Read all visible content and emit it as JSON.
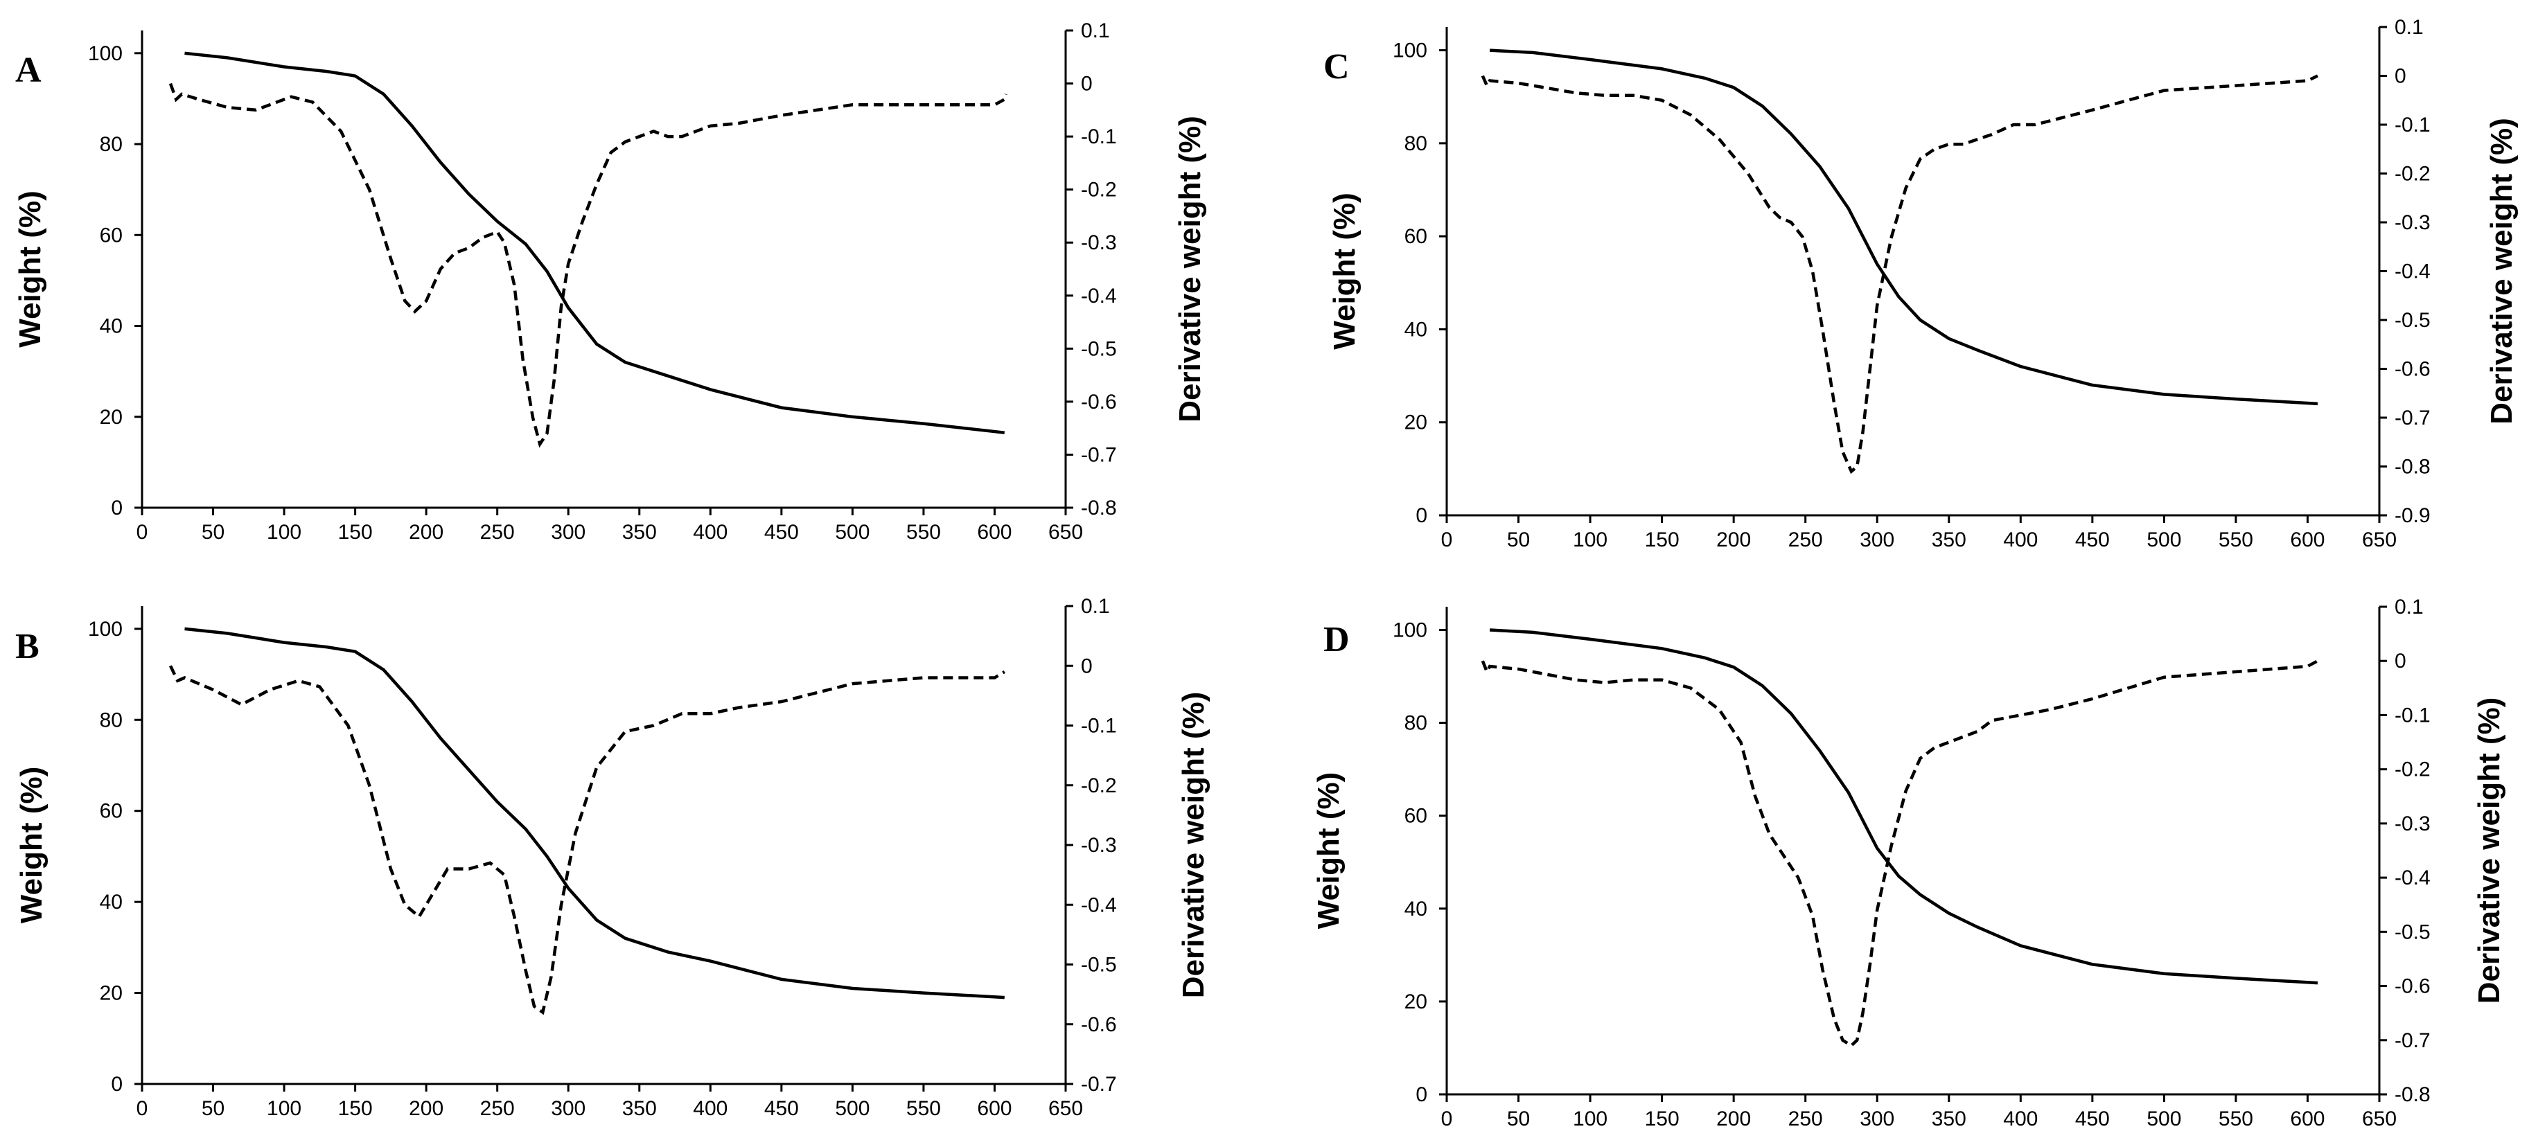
{
  "chart_data": [
    {
      "type": "line",
      "panel_label": "A",
      "ylabel": "Weight (%)",
      "y2label": "Derivative weight (%)",
      "xlim": [
        0,
        650
      ],
      "ylim": [
        0,
        105
      ],
      "y2lim": [
        -0.8,
        0.1
      ],
      "xticks": [
        "0",
        "50",
        "100",
        "150",
        "200",
        "250",
        "300",
        "350",
        "400",
        "450",
        "500",
        "550",
        "600",
        "650"
      ],
      "yticks": [
        "0",
        "20",
        "40",
        "60",
        "80",
        "100"
      ],
      "y2ticks": [
        "0.1",
        "0",
        "-0.1",
        "-0.2",
        "-0.3",
        "-0.4",
        "-0.5",
        "-0.6",
        "-0.7",
        "-0.8"
      ],
      "series": [
        {
          "name": "Weight (%)",
          "axis": "left",
          "style": "solid",
          "x": [
            30,
            60,
            100,
            130,
            150,
            170,
            190,
            210,
            230,
            250,
            270,
            285,
            300,
            320,
            340,
            370,
            400,
            450,
            500,
            550,
            607
          ],
          "y": [
            100,
            99,
            97,
            96,
            95,
            91,
            84,
            76,
            69,
            63,
            58,
            52,
            44,
            36,
            32,
            29,
            26,
            22,
            20,
            18.5,
            16.5
          ]
        },
        {
          "name": "Derivative weight (%)",
          "axis": "right",
          "style": "dashed",
          "x": [
            20,
            24,
            28,
            40,
            60,
            80,
            95,
            105,
            120,
            140,
            160,
            175,
            185,
            192,
            200,
            210,
            220,
            230,
            240,
            250,
            255,
            262,
            268,
            275,
            280,
            285,
            290,
            295,
            300,
            310,
            320,
            330,
            340,
            350,
            360,
            370,
            380,
            400,
            420,
            450,
            500,
            550,
            600,
            607,
            608
          ],
          "y": [
            0,
            -0.03,
            -0.02,
            -0.03,
            -0.045,
            -0.05,
            -0.035,
            -0.025,
            -0.035,
            -0.09,
            -0.2,
            -0.33,
            -0.41,
            -0.43,
            -0.41,
            -0.35,
            -0.32,
            -0.31,
            -0.29,
            -0.28,
            -0.3,
            -0.38,
            -0.52,
            -0.63,
            -0.68,
            -0.66,
            -0.56,
            -0.42,
            -0.34,
            -0.26,
            -0.19,
            -0.13,
            -0.11,
            -0.1,
            -0.09,
            -0.1,
            -0.1,
            -0.08,
            -0.075,
            -0.06,
            -0.04,
            -0.04,
            -0.04,
            -0.03,
            -0.02
          ]
        }
      ]
    },
    {
      "type": "line",
      "panel_label": "B",
      "ylabel": "Weight (%)",
      "y2label": "Derivative weight (%)",
      "xlim": [
        0,
        650
      ],
      "ylim": [
        0,
        105
      ],
      "y2lim": [
        -0.7,
        0.1
      ],
      "xticks": [
        "0",
        "50",
        "100",
        "150",
        "200",
        "250",
        "300",
        "350",
        "400",
        "450",
        "500",
        "550",
        "600",
        "650"
      ],
      "yticks": [
        "0",
        "20",
        "40",
        "60",
        "80",
        "100"
      ],
      "y2ticks": [
        "0.1",
        "0",
        "-0.1",
        "-0.2",
        "-0.3",
        "-0.4",
        "-0.5",
        "-0.6",
        "-0.7"
      ],
      "series": [
        {
          "name": "Weight (%)",
          "axis": "left",
          "style": "solid",
          "x": [
            30,
            60,
            100,
            130,
            150,
            170,
            190,
            210,
            230,
            250,
            270,
            285,
            300,
            320,
            340,
            370,
            400,
            450,
            500,
            550,
            607
          ],
          "y": [
            100,
            99,
            97,
            96,
            95,
            91,
            84,
            76,
            69,
            62,
            56,
            50,
            43,
            36,
            32,
            29,
            27,
            23,
            21,
            20,
            19
          ]
        },
        {
          "name": "Derivative weight (%)",
          "axis": "right",
          "style": "dashed",
          "x": [
            20,
            25,
            30,
            50,
            70,
            90,
            110,
            125,
            145,
            160,
            175,
            185,
            195,
            205,
            215,
            230,
            245,
            255,
            262,
            270,
            276,
            282,
            288,
            295,
            305,
            320,
            340,
            360,
            380,
            400,
            420,
            450,
            500,
            550,
            600,
            607
          ],
          "y": [
            0,
            -0.025,
            -0.02,
            -0.04,
            -0.065,
            -0.04,
            -0.025,
            -0.035,
            -0.1,
            -0.2,
            -0.34,
            -0.4,
            -0.42,
            -0.38,
            -0.34,
            -0.34,
            -0.33,
            -0.35,
            -0.42,
            -0.51,
            -0.57,
            -0.58,
            -0.52,
            -0.4,
            -0.28,
            -0.17,
            -0.11,
            -0.1,
            -0.08,
            -0.08,
            -0.07,
            -0.06,
            -0.03,
            -0.02,
            -0.02,
            -0.01
          ]
        }
      ]
    },
    {
      "type": "line",
      "panel_label": "C",
      "ylabel": "Weight (%)",
      "y2label": "Derivative weight (%)",
      "xlim": [
        0,
        650
      ],
      "ylim": [
        0,
        105
      ],
      "y2lim": [
        -0.9,
        0.1
      ],
      "xticks": [
        "0",
        "50",
        "100",
        "150",
        "200",
        "250",
        "300",
        "350",
        "400",
        "450",
        "500",
        "550",
        "600",
        "650"
      ],
      "yticks": [
        "0",
        "20",
        "40",
        "60",
        "80",
        "100"
      ],
      "y2ticks": [
        "0.1",
        "0",
        "-0.1",
        "-0.2",
        "-0.3",
        "-0.4",
        "-0.5",
        "-0.6",
        "-0.7",
        "-0.8",
        "-0.9"
      ],
      "series": [
        {
          "name": "Weight (%)",
          "axis": "left",
          "style": "solid",
          "x": [
            30,
            60,
            100,
            150,
            180,
            200,
            220,
            240,
            260,
            280,
            290,
            300,
            315,
            330,
            350,
            370,
            400,
            450,
            500,
            550,
            607
          ],
          "y": [
            100,
            99.5,
            98,
            96,
            94,
            92,
            88,
            82,
            75,
            66,
            60,
            54,
            47,
            42,
            38,
            35.5,
            32,
            28,
            26,
            25,
            24
          ]
        },
        {
          "name": "Derivative weight (%)",
          "axis": "right",
          "style": "dashed",
          "x": [
            25,
            28,
            30,
            50,
            70,
            90,
            110,
            130,
            150,
            170,
            190,
            210,
            225,
            232,
            240,
            248,
            255,
            262,
            270,
            276,
            282,
            286,
            290,
            295,
            300,
            310,
            320,
            330,
            340,
            350,
            360,
            370,
            380,
            395,
            410,
            450,
            500,
            550,
            600,
            607
          ],
          "y": [
            0,
            -0.02,
            -0.01,
            -0.015,
            -0.025,
            -0.035,
            -0.04,
            -0.04,
            -0.05,
            -0.08,
            -0.13,
            -0.2,
            -0.27,
            -0.29,
            -0.3,
            -0.33,
            -0.4,
            -0.52,
            -0.67,
            -0.77,
            -0.81,
            -0.8,
            -0.73,
            -0.6,
            -0.47,
            -0.33,
            -0.23,
            -0.17,
            -0.15,
            -0.14,
            -0.14,
            -0.13,
            -0.12,
            -0.1,
            -0.1,
            -0.07,
            -0.03,
            -0.02,
            -0.01,
            0
          ]
        }
      ]
    },
    {
      "type": "line",
      "panel_label": "D",
      "ylabel": "Weight (%)",
      "y2label": "Derivative weight (%)",
      "xlim": [
        0,
        650
      ],
      "ylim": [
        0,
        105
      ],
      "y2lim": [
        -0.8,
        0.1
      ],
      "xticks": [
        "0",
        "50",
        "100",
        "150",
        "200",
        "250",
        "300",
        "350",
        "400",
        "450",
        "500",
        "550",
        "600",
        "650"
      ],
      "yticks": [
        "0",
        "20",
        "40",
        "60",
        "80",
        "100"
      ],
      "y2ticks": [
        "0.1",
        "0",
        "-0.1",
        "-0.2",
        "-0.3",
        "-0.4",
        "-0.5",
        "-0.6",
        "-0.7",
        "-0.8"
      ],
      "series": [
        {
          "name": "Weight (%)",
          "axis": "left",
          "style": "solid",
          "x": [
            30,
            60,
            100,
            150,
            180,
            200,
            220,
            240,
            260,
            280,
            290,
            300,
            315,
            330,
            350,
            370,
            400,
            450,
            500,
            550,
            607
          ],
          "y": [
            100,
            99.5,
            98,
            96,
            94,
            92,
            88,
            82,
            74,
            65,
            59,
            53,
            47,
            43,
            39,
            36,
            32,
            28,
            26,
            25,
            24
          ]
        },
        {
          "name": "Derivative weight (%)",
          "axis": "right",
          "style": "dashed",
          "x": [
            25,
            28,
            30,
            50,
            70,
            90,
            110,
            130,
            150,
            170,
            190,
            205,
            215,
            225,
            235,
            245,
            255,
            262,
            270,
            276,
            282,
            286,
            290,
            295,
            300,
            310,
            320,
            330,
            340,
            350,
            360,
            370,
            380,
            400,
            420,
            450,
            500,
            550,
            600,
            607
          ],
          "y": [
            0,
            -0.02,
            -0.01,
            -0.015,
            -0.025,
            -0.035,
            -0.04,
            -0.035,
            -0.035,
            -0.05,
            -0.09,
            -0.15,
            -0.25,
            -0.32,
            -0.36,
            -0.4,
            -0.47,
            -0.57,
            -0.66,
            -0.7,
            -0.71,
            -0.7,
            -0.65,
            -0.56,
            -0.46,
            -0.34,
            -0.24,
            -0.18,
            -0.16,
            -0.15,
            -0.14,
            -0.13,
            -0.11,
            -0.1,
            -0.09,
            -0.07,
            -0.03,
            -0.02,
            -0.01,
            0
          ]
        }
      ]
    }
  ]
}
